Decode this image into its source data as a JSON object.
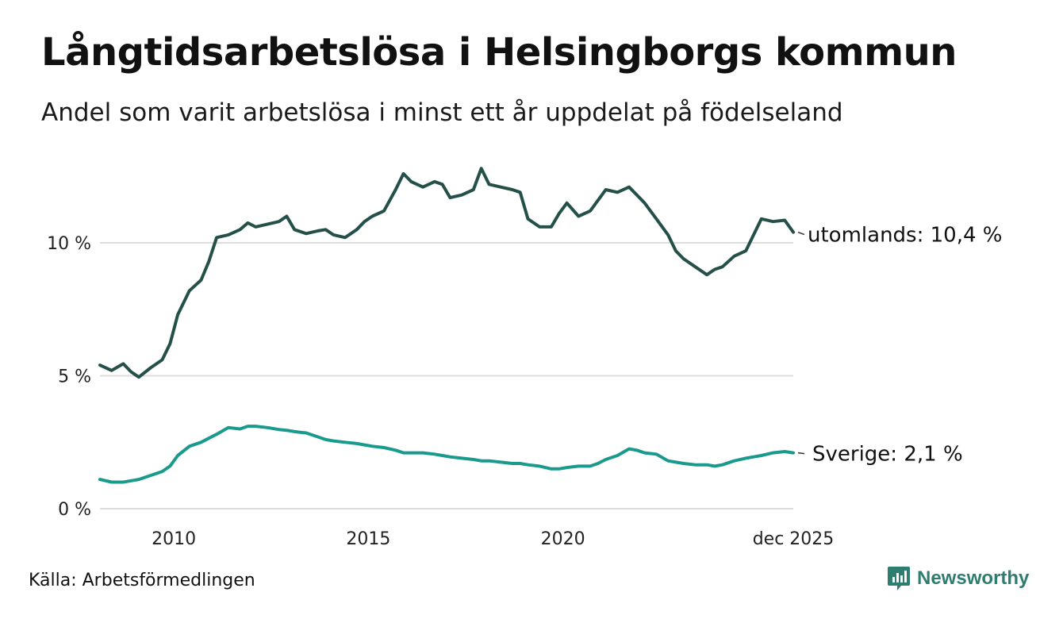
{
  "title": "Långtidsarbetslösa i Helsingborgs kommun",
  "subtitle": "Andel som varit arbetslösa i minst ett år uppdelat på födelseland",
  "source": "Källa: Arbetsförmedlingen",
  "brand": "Newsworthy",
  "colors": {
    "utomlands": "#25504a",
    "sverige": "#1a9a8c",
    "grid": "#dddddd",
    "brand": "#2e7d71"
  },
  "chart_data": {
    "type": "line",
    "title": "Långtidsarbetslösa i Helsingborgs kommun",
    "xlabel": "",
    "ylabel": "",
    "xlim": [
      2008.1,
      2025.92
    ],
    "ylim": [
      0,
      13
    ],
    "y_ticks": [
      {
        "value": 0,
        "label": "0 %"
      },
      {
        "value": 5,
        "label": "5 %"
      },
      {
        "value": 10,
        "label": "10 %"
      }
    ],
    "x_ticks": [
      {
        "value": 2010,
        "label": "2010"
      },
      {
        "value": 2015,
        "label": "2015"
      },
      {
        "value": 2020,
        "label": "2020"
      },
      {
        "value": 2025.92,
        "label": "dec 2025"
      }
    ],
    "series": [
      {
        "name": "utomlands",
        "end_label": "utomlands: 10,4 %",
        "color": "#25504a",
        "x": [
          2008.1,
          2008.4,
          2008.7,
          2008.9,
          2009.1,
          2009.4,
          2009.7,
          2009.9,
          2010.1,
          2010.4,
          2010.7,
          2010.9,
          2011.1,
          2011.4,
          2011.7,
          2011.9,
          2012.1,
          2012.4,
          2012.7,
          2012.9,
          2013.1,
          2013.4,
          2013.7,
          2013.9,
          2014.1,
          2014.4,
          2014.7,
          2014.9,
          2015.1,
          2015.4,
          2015.7,
          2015.9,
          2016.1,
          2016.4,
          2016.7,
          2016.9,
          2017.1,
          2017.4,
          2017.7,
          2017.9,
          2018.1,
          2018.4,
          2018.7,
          2018.9,
          2019.1,
          2019.4,
          2019.7,
          2019.9,
          2020.1,
          2020.4,
          2020.7,
          2020.9,
          2021.1,
          2021.4,
          2021.7,
          2021.9,
          2022.1,
          2022.4,
          2022.7,
          2022.9,
          2023.1,
          2023.4,
          2023.7,
          2023.9,
          2024.1,
          2024.4,
          2024.7,
          2024.9,
          2025.1,
          2025.4,
          2025.7,
          2025.92
        ],
        "values": [
          5.4,
          5.2,
          5.45,
          5.15,
          4.95,
          5.3,
          5.6,
          6.2,
          7.3,
          8.2,
          8.6,
          9.3,
          10.2,
          10.3,
          10.5,
          10.75,
          10.6,
          10.7,
          10.8,
          11.0,
          10.5,
          10.35,
          10.45,
          10.5,
          10.3,
          10.2,
          10.5,
          10.8,
          11.0,
          11.2,
          12.0,
          12.6,
          12.3,
          12.1,
          12.3,
          12.2,
          11.7,
          11.8,
          12.0,
          12.8,
          12.2,
          12.1,
          12.0,
          11.9,
          10.9,
          10.6,
          10.6,
          11.1,
          11.5,
          11.0,
          11.2,
          11.6,
          12.0,
          11.9,
          12.1,
          11.8,
          11.5,
          10.9,
          10.3,
          9.7,
          9.4,
          9.1,
          8.8,
          9.0,
          9.1,
          9.5,
          9.7,
          10.3,
          10.9,
          10.8,
          10.85,
          10.4
        ]
      },
      {
        "name": "Sverige",
        "end_label": "Sverige:  2,1 %",
        "color": "#1a9a8c",
        "x": [
          2008.1,
          2008.4,
          2008.7,
          2008.9,
          2009.1,
          2009.4,
          2009.7,
          2009.9,
          2010.1,
          2010.4,
          2010.7,
          2010.9,
          2011.1,
          2011.4,
          2011.7,
          2011.9,
          2012.1,
          2012.4,
          2012.7,
          2012.9,
          2013.1,
          2013.4,
          2013.7,
          2013.9,
          2014.1,
          2014.4,
          2014.7,
          2014.9,
          2015.1,
          2015.4,
          2015.7,
          2015.9,
          2016.1,
          2016.4,
          2016.7,
          2016.9,
          2017.1,
          2017.4,
          2017.7,
          2017.9,
          2018.1,
          2018.4,
          2018.7,
          2018.9,
          2019.1,
          2019.4,
          2019.7,
          2019.9,
          2020.1,
          2020.4,
          2020.7,
          2020.9,
          2021.1,
          2021.4,
          2021.7,
          2021.9,
          2022.1,
          2022.4,
          2022.7,
          2022.9,
          2023.1,
          2023.4,
          2023.7,
          2023.9,
          2024.1,
          2024.4,
          2024.7,
          2024.9,
          2025.1,
          2025.4,
          2025.7,
          2025.92
        ],
        "values": [
          1.1,
          1.0,
          1.0,
          1.05,
          1.1,
          1.25,
          1.4,
          1.6,
          2.0,
          2.35,
          2.5,
          2.65,
          2.8,
          3.05,
          3.0,
          3.1,
          3.1,
          3.05,
          2.98,
          2.95,
          2.9,
          2.85,
          2.7,
          2.6,
          2.55,
          2.5,
          2.45,
          2.4,
          2.35,
          2.3,
          2.2,
          2.1,
          2.1,
          2.1,
          2.05,
          2.0,
          1.95,
          1.9,
          1.85,
          1.8,
          1.8,
          1.75,
          1.7,
          1.7,
          1.65,
          1.6,
          1.5,
          1.5,
          1.55,
          1.6,
          1.6,
          1.7,
          1.85,
          2.0,
          2.25,
          2.2,
          2.1,
          2.05,
          1.8,
          1.75,
          1.7,
          1.65,
          1.65,
          1.6,
          1.65,
          1.8,
          1.9,
          1.95,
          2.0,
          2.1,
          2.15,
          2.1
        ]
      }
    ]
  }
}
